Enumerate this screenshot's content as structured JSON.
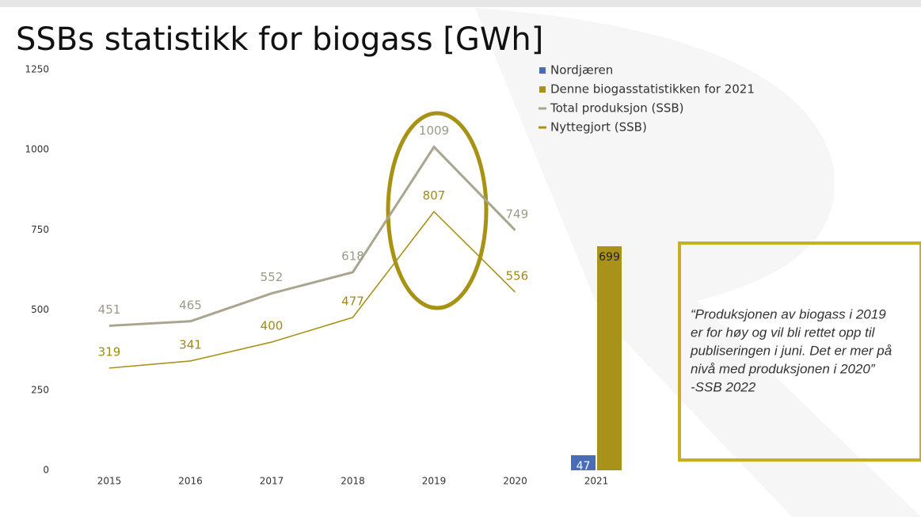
{
  "chart_data": {
    "type": "line",
    "title": "SSBs statistikk for biogass [GWh]",
    "categories": [
      "2015",
      "2016",
      "2017",
      "2018",
      "2019",
      "2020",
      "2021"
    ],
    "series": [
      {
        "name": "Nordjæren",
        "type": "bar",
        "color": "#4a6bb5",
        "values": [
          null,
          null,
          null,
          null,
          null,
          null,
          47
        ]
      },
      {
        "name": "Denne biogasstatistikken for 2021",
        "type": "bar",
        "color": "#a8921a",
        "values": [
          null,
          null,
          null,
          null,
          null,
          null,
          699
        ]
      },
      {
        "name": "Total produksjon (SSB)",
        "type": "line",
        "color": "#a9a58e",
        "values": [
          451,
          465,
          552,
          618,
          1009,
          749,
          null
        ]
      },
      {
        "name": "Nyttegjort (SSB)",
        "type": "line",
        "color": "#a8921a",
        "values": [
          319,
          341,
          400,
          477,
          807,
          556,
          null
        ]
      }
    ],
    "ylim": [
      0,
      1250
    ],
    "yticks": [
      0,
      250,
      500,
      750,
      1000,
      1250
    ],
    "grid": false,
    "legend": "top-right",
    "annotation": [
      "“Produksjonen av biogass i 2019",
      "er for høy og vil bli rettet opp til",
      "publiseringen i juni. Det er mer på",
      "nivå med produksjonen i 2020”",
      "-SSB 2022"
    ]
  }
}
